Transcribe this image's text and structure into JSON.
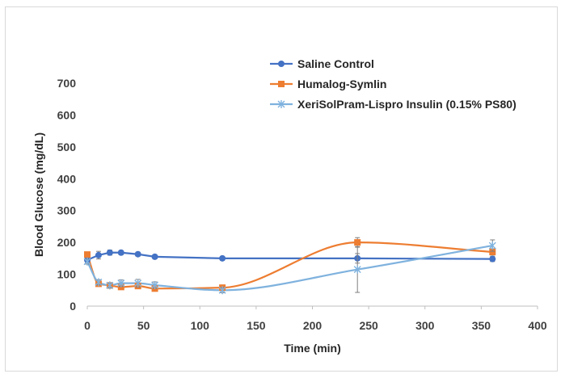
{
  "chart_data": {
    "type": "scatter",
    "title": "",
    "xlabel": "Time (min)",
    "ylabel": "Blood Glucose (mg/dL)",
    "xlim": [
      0,
      400
    ],
    "ylim": [
      0,
      700
    ],
    "x_ticks": [
      0,
      50,
      100,
      150,
      200,
      250,
      300,
      350,
      400
    ],
    "y_ticks": [
      0,
      100,
      200,
      300,
      400,
      500,
      600,
      700
    ],
    "grid": false,
    "legend_position": "top-right",
    "series": [
      {
        "name": "Saline Control",
        "color": "#4472c4",
        "marker": "circle",
        "smooth": false,
        "x": [
          0,
          10,
          20,
          30,
          45,
          60,
          120,
          240,
          360
        ],
        "y": [
          145,
          160,
          168,
          168,
          163,
          155,
          150,
          150,
          148
        ],
        "error": [
          8,
          12,
          8,
          6,
          6,
          6,
          6,
          15,
          8
        ]
      },
      {
        "name": "Humalog-Symlin",
        "color": "#ed7d31",
        "marker": "square",
        "smooth": true,
        "x": [
          0,
          10,
          20,
          30,
          45,
          60,
          120,
          240,
          360
        ],
        "y": [
          162,
          70,
          65,
          60,
          63,
          55,
          58,
          200,
          170
        ],
        "error": [
          8,
          6,
          6,
          6,
          6,
          6,
          6,
          15,
          10
        ]
      },
      {
        "name": "XeriSolPram-Lispro Insulin (0.15% PS80)",
        "color": "#7fb2de",
        "marker": "star",
        "smooth": true,
        "x": [
          0,
          10,
          20,
          30,
          45,
          60,
          120,
          240,
          360
        ],
        "y": [
          140,
          75,
          65,
          72,
          72,
          66,
          50,
          115,
          190
        ],
        "error": [
          8,
          8,
          8,
          10,
          12,
          10,
          8,
          72,
          18
        ]
      }
    ]
  }
}
